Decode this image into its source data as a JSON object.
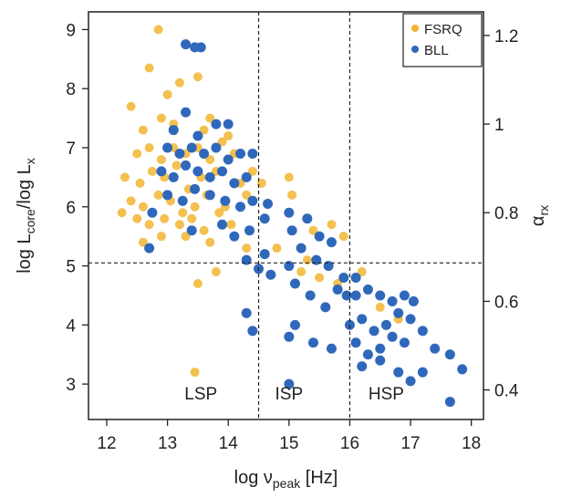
{
  "chart_data": {
    "type": "scatter",
    "xlabel": "log ν",
    "xlabel_sub": "peak",
    "xlabel_unit": " [Hz]",
    "ylabel_parts": [
      "log L",
      "core",
      "/log L",
      "x"
    ],
    "y2label": "α",
    "y2label_sub": "rx",
    "xlim": [
      11.7,
      18.2
    ],
    "ylim": [
      2.4,
      9.3
    ],
    "y2lim": [
      0.3333,
      1.2533
    ],
    "x_ticks": [
      "12",
      "13",
      "14",
      "15",
      "16",
      "17",
      "18"
    ],
    "y_ticks": [
      "3",
      "4",
      "5",
      "6",
      "7",
      "8",
      "9"
    ],
    "y2_ticks": [
      "0.4",
      "0.6",
      "0.8",
      "1",
      "1.2"
    ],
    "y2_tick_values": [
      0.4,
      0.6,
      0.8,
      1.0,
      1.2
    ],
    "grid": false,
    "legend_position": "top-right",
    "vlines": [
      14.5,
      16.0
    ],
    "hlines": [
      5.05
    ],
    "region_labels": [
      {
        "text": "LSP",
        "x": 13.55,
        "y": 2.85
      },
      {
        "text": "ISP",
        "x": 15.0,
        "y": 2.85
      },
      {
        "text": "HSP",
        "x": 16.6,
        "y": 2.85
      }
    ],
    "series": [
      {
        "name": "FSRQ",
        "color": "#f2b531",
        "points": [
          [
            12.85,
            9.0
          ],
          [
            12.7,
            8.35
          ],
          [
            12.4,
            7.7
          ],
          [
            13.0,
            7.9
          ],
          [
            13.2,
            8.1
          ],
          [
            13.5,
            8.2
          ],
          [
            13.7,
            7.5
          ],
          [
            12.6,
            7.3
          ],
          [
            12.9,
            7.5
          ],
          [
            13.1,
            7.4
          ],
          [
            13.3,
            7.6
          ],
          [
            13.6,
            7.3
          ],
          [
            13.9,
            7.1
          ],
          [
            14.0,
            7.2
          ],
          [
            12.5,
            6.9
          ],
          [
            12.7,
            7.0
          ],
          [
            12.9,
            6.8
          ],
          [
            13.1,
            7.0
          ],
          [
            13.3,
            6.9
          ],
          [
            13.5,
            7.0
          ],
          [
            13.7,
            6.8
          ],
          [
            14.1,
            6.9
          ],
          [
            12.3,
            6.5
          ],
          [
            12.55,
            6.4
          ],
          [
            12.75,
            6.6
          ],
          [
            12.95,
            6.5
          ],
          [
            13.15,
            6.7
          ],
          [
            13.35,
            6.3
          ],
          [
            13.55,
            6.5
          ],
          [
            13.8,
            6.6
          ],
          [
            14.2,
            6.4
          ],
          [
            14.4,
            6.6
          ],
          [
            12.4,
            6.1
          ],
          [
            12.6,
            6.0
          ],
          [
            12.85,
            6.2
          ],
          [
            13.05,
            6.1
          ],
          [
            13.25,
            5.9
          ],
          [
            13.45,
            6.0
          ],
          [
            13.65,
            6.2
          ],
          [
            13.95,
            6.0
          ],
          [
            14.3,
            6.2
          ],
          [
            12.25,
            5.9
          ],
          [
            12.5,
            5.8
          ],
          [
            12.7,
            5.7
          ],
          [
            12.95,
            5.8
          ],
          [
            13.2,
            5.7
          ],
          [
            13.4,
            5.8
          ],
          [
            13.6,
            5.6
          ],
          [
            13.85,
            5.9
          ],
          [
            14.05,
            5.7
          ],
          [
            12.6,
            5.4
          ],
          [
            12.9,
            5.5
          ],
          [
            13.3,
            5.5
          ],
          [
            13.7,
            5.4
          ],
          [
            14.3,
            5.3
          ],
          [
            13.8,
            4.9
          ],
          [
            13.5,
            4.7
          ],
          [
            14.55,
            6.4
          ],
          [
            15.0,
            6.5
          ],
          [
            15.05,
            6.2
          ],
          [
            15.4,
            5.6
          ],
          [
            15.7,
            5.7
          ],
          [
            15.9,
            5.5
          ],
          [
            15.3,
            5.1
          ],
          [
            15.5,
            4.8
          ],
          [
            14.8,
            5.3
          ],
          [
            15.2,
            4.9
          ],
          [
            15.8,
            4.7
          ],
          [
            16.2,
            4.9
          ],
          [
            16.5,
            4.3
          ],
          [
            16.8,
            4.1
          ],
          [
            13.45,
            3.2
          ]
        ]
      },
      {
        "name": "BLL",
        "color": "#2f68bb",
        "points": [
          [
            13.3,
            8.75
          ],
          [
            13.45,
            8.7
          ],
          [
            13.55,
            8.7
          ],
          [
            13.3,
            7.6
          ],
          [
            13.8,
            7.4
          ],
          [
            14.0,
            7.4
          ],
          [
            13.5,
            7.2
          ],
          [
            13.1,
            7.3
          ],
          [
            13.0,
            7.0
          ],
          [
            13.2,
            6.9
          ],
          [
            13.4,
            7.0
          ],
          [
            13.6,
            6.9
          ],
          [
            13.8,
            7.0
          ],
          [
            14.0,
            6.8
          ],
          [
            14.2,
            6.9
          ],
          [
            14.4,
            6.9
          ],
          [
            12.9,
            6.6
          ],
          [
            13.1,
            6.5
          ],
          [
            13.3,
            6.7
          ],
          [
            13.5,
            6.6
          ],
          [
            13.7,
            6.5
          ],
          [
            13.9,
            6.6
          ],
          [
            14.1,
            6.4
          ],
          [
            14.3,
            6.5
          ],
          [
            13.0,
            6.2
          ],
          [
            13.25,
            6.1
          ],
          [
            13.45,
            6.3
          ],
          [
            13.7,
            6.2
          ],
          [
            13.95,
            6.1
          ],
          [
            14.2,
            6.0
          ],
          [
            14.4,
            6.1
          ],
          [
            12.75,
            5.9
          ],
          [
            13.4,
            5.6
          ],
          [
            13.9,
            5.7
          ],
          [
            14.1,
            5.5
          ],
          [
            14.35,
            5.6
          ],
          [
            14.6,
            5.8
          ],
          [
            14.65,
            6.05
          ],
          [
            12.7,
            5.3
          ],
          [
            14.3,
            5.1
          ],
          [
            14.5,
            4.95
          ],
          [
            14.7,
            4.85
          ],
          [
            14.6,
            5.2
          ],
          [
            15.0,
            5.9
          ],
          [
            15.05,
            5.6
          ],
          [
            15.3,
            5.8
          ],
          [
            15.5,
            5.5
          ],
          [
            15.7,
            5.4
          ],
          [
            15.2,
            5.3
          ],
          [
            15.45,
            5.1
          ],
          [
            15.65,
            5.0
          ],
          [
            15.0,
            5.0
          ],
          [
            15.1,
            4.7
          ],
          [
            15.35,
            4.5
          ],
          [
            15.6,
            4.3
          ],
          [
            15.8,
            4.6
          ],
          [
            15.95,
            4.5
          ],
          [
            16.1,
            4.5
          ],
          [
            15.9,
            4.8
          ],
          [
            16.1,
            4.8
          ],
          [
            16.3,
            4.6
          ],
          [
            16.5,
            4.5
          ],
          [
            16.7,
            4.4
          ],
          [
            16.9,
            4.5
          ],
          [
            17.05,
            4.4
          ],
          [
            16.0,
            4.0
          ],
          [
            16.2,
            4.1
          ],
          [
            16.4,
            3.9
          ],
          [
            16.6,
            4.0
          ],
          [
            16.8,
            4.2
          ],
          [
            17.0,
            4.1
          ],
          [
            17.2,
            3.9
          ],
          [
            15.1,
            4.0
          ],
          [
            15.0,
            3.8
          ],
          [
            15.4,
            3.7
          ],
          [
            15.7,
            3.6
          ],
          [
            16.1,
            3.7
          ],
          [
            16.3,
            3.5
          ],
          [
            16.5,
            3.6
          ],
          [
            16.7,
            3.8
          ],
          [
            16.9,
            3.7
          ],
          [
            16.2,
            3.3
          ],
          [
            16.5,
            3.4
          ],
          [
            16.8,
            3.2
          ],
          [
            17.0,
            3.05
          ],
          [
            17.2,
            3.2
          ],
          [
            17.4,
            3.6
          ],
          [
            17.65,
            3.5
          ],
          [
            17.85,
            3.25
          ],
          [
            17.65,
            2.7
          ],
          [
            15.0,
            3.0
          ],
          [
            14.3,
            4.2
          ],
          [
            14.4,
            3.9
          ]
        ]
      }
    ]
  }
}
